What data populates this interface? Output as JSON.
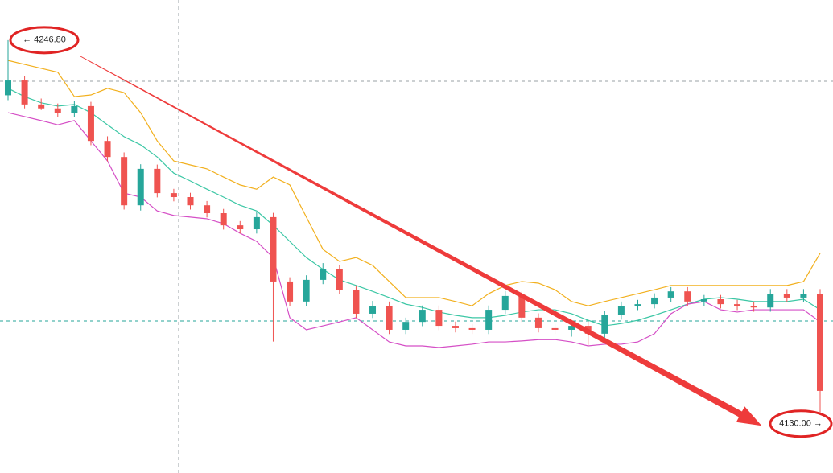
{
  "chart_data": {
    "type": "candlestick",
    "ylim": [
      4115,
      4259
    ],
    "up_color": "#26a69a",
    "down_color": "#ef5350",
    "open": [
      4230.0,
      4234.5,
      4227.2,
      4226.0,
      4224.7,
      4226.7,
      4216.1,
      4211.2,
      4196.5,
      4207.6,
      4200.2,
      4199.0,
      4196.5,
      4194.1,
      4190.4,
      4189.2,
      4192.9,
      4173.3,
      4167.2,
      4173.8,
      4177.0,
      4170.8,
      4163.5,
      4165.9,
      4158.6,
      4161.0,
      4164.7,
      4159.8,
      4159.1,
      4158.6,
      4164.7,
      4168.9,
      4162.3,
      4159.1,
      4158.6,
      4159.8,
      4157.4,
      4163.0,
      4165.9,
      4166.4,
      4168.4,
      4170.3,
      4167.2,
      4167.9,
      4166.4,
      4165.9,
      4165.4,
      4169.6,
      4168.4,
      4169.6
    ],
    "high": [
      4246.8,
      4235.8,
      4229.0,
      4227.5,
      4228.3,
      4228.0,
      4217.5,
      4212.6,
      4209.0,
      4208.9,
      4201.5,
      4200.3,
      4197.8,
      4195.4,
      4191.7,
      4194.5,
      4194.2,
      4174.6,
      4175.2,
      4178.9,
      4178.3,
      4172.1,
      4167.4,
      4167.2,
      4162.3,
      4166.0,
      4166.0,
      4161.1,
      4160.4,
      4166.0,
      4170.4,
      4170.2,
      4163.6,
      4160.4,
      4161.1,
      4161.1,
      4164.3,
      4167.2,
      4167.7,
      4169.7,
      4171.6,
      4171.6,
      4169.2,
      4169.2,
      4167.7,
      4167.2,
      4171.0,
      4171.0,
      4171.0,
      4171.0
    ],
    "low": [
      4228.5,
      4226.0,
      4225.5,
      4223.4,
      4223.4,
      4214.8,
      4209.9,
      4195.2,
      4194.9,
      4198.9,
      4197.7,
      4195.2,
      4192.8,
      4189.1,
      4187.9,
      4187.9,
      4155.0,
      4165.9,
      4165.9,
      4172.5,
      4169.5,
      4162.2,
      4162.2,
      4157.3,
      4157.3,
      4159.7,
      4158.5,
      4157.8,
      4157.3,
      4157.3,
      4163.4,
      4161.0,
      4157.8,
      4157.3,
      4156.5,
      4154.0,
      4156.1,
      4161.7,
      4164.6,
      4165.1,
      4167.1,
      4165.9,
      4165.9,
      4165.1,
      4164.6,
      4164.1,
      4164.1,
      4167.1,
      4167.1,
      4130.0
    ],
    "close": [
      4234.5,
      4227.2,
      4226.0,
      4224.7,
      4226.7,
      4216.1,
      4211.2,
      4196.5,
      4207.6,
      4200.2,
      4199.0,
      4196.5,
      4194.1,
      4190.4,
      4189.2,
      4192.9,
      4173.3,
      4167.2,
      4173.8,
      4177.0,
      4170.8,
      4163.5,
      4165.9,
      4158.6,
      4161.0,
      4164.7,
      4159.8,
      4159.1,
      4158.6,
      4164.7,
      4168.9,
      4162.3,
      4159.1,
      4158.6,
      4159.8,
      4157.4,
      4163.0,
      4165.9,
      4166.4,
      4168.4,
      4170.3,
      4167.2,
      4167.9,
      4166.4,
      4165.9,
      4165.4,
      4169.6,
      4168.4,
      4169.6,
      4140.0
    ],
    "bands": [
      {
        "color": "#f2b01e",
        "values": [
          4240.6,
          4239.4,
          4238.2,
          4237.0,
          4229.6,
          4230.1,
          4232.1,
          4230.8,
          4224.7,
          4216.1,
          4210.0,
          4208.8,
          4207.6,
          4205.1,
          4202.7,
          4201.4,
          4205.1,
          4202.7,
          4192.9,
          4183.1,
          4179.4,
          4180.6,
          4178.2,
          4173.3,
          4168.4,
          4168.4,
          4168.4,
          4167.2,
          4165.9,
          4169.6,
          4172.1,
          4173.3,
          4172.8,
          4170.8,
          4167.2,
          4165.9,
          4167.2,
          4168.4,
          4169.6,
          4170.8,
          4172.1,
          4172.1,
          4172.1,
          4172.1,
          4172.1,
          4172.1,
          4172.1,
          4172.1,
          4173.3,
          4181.9
        ]
      },
      {
        "color": "#3cc7a5",
        "values": [
          4232.1,
          4229.6,
          4227.7,
          4226.7,
          4227.2,
          4224.7,
          4221.0,
          4217.4,
          4214.9,
          4211.2,
          4206.3,
          4203.9,
          4201.4,
          4199.0,
          4196.5,
          4194.8,
          4190.4,
          4185.5,
          4180.6,
          4177.0,
          4173.8,
          4172.1,
          4170.3,
          4168.4,
          4166.4,
          4165.4,
          4164.0,
          4163.0,
          4162.3,
          4162.3,
          4163.0,
          4164.0,
          4164.7,
          4164.7,
          4163.5,
          4161.5,
          4159.8,
          4160.5,
          4161.5,
          4163.0,
          4164.7,
          4166.4,
          4167.9,
          4168.4,
          4167.9,
          4167.2,
          4167.2,
          4167.2,
          4167.9,
          4164.7
        ]
      },
      {
        "color": "#d54fc6",
        "values": [
          4224.7,
          4223.5,
          4222.3,
          4221.0,
          4222.3,
          4216.1,
          4210.0,
          4200.2,
          4199.0,
          4194.8,
          4193.4,
          4192.9,
          4192.4,
          4190.9,
          4188.0,
          4185.5,
          4180.6,
          4162.3,
          4158.6,
          4159.8,
          4161.0,
          4162.3,
          4158.6,
          4154.9,
          4153.7,
          4153.7,
          4153.2,
          4153.7,
          4154.2,
          4154.9,
          4154.9,
          4155.2,
          4155.6,
          4155.6,
          4154.9,
          4153.7,
          4154.2,
          4154.2,
          4154.9,
          4157.4,
          4163.5,
          4166.4,
          4167.2,
          4164.7,
          4164.0,
          4164.7,
          4164.7,
          4164.7,
          4164.7,
          4161.0
        ]
      }
    ],
    "annotations": [
      {
        "text": "← 4246.80",
        "value": 4246.8
      },
      {
        "text": "4130.00 →",
        "value": 4130.0
      }
    ]
  }
}
